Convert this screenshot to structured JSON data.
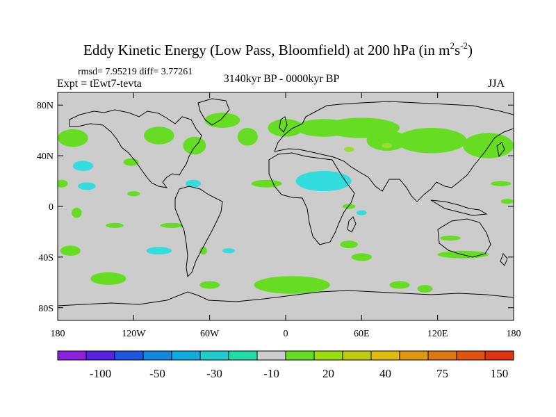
{
  "title_main": "Eddy Kinetic Energy (Low Pass, Bloomfield) at 200 hPa (in m",
  "title_sup1": "2",
  "title_mid": "s",
  "title_sup2": "-2",
  "title_end": ")",
  "stats": "rmsd= 7.95219 diff= 3.77261",
  "experiment": "Expt = tEwt7-tevta",
  "period": "3140kyr BP - 0000kyr BP",
  "season": "JJA",
  "map": {
    "projection": "cylindrical-equidistant",
    "lon_range": [
      -180,
      180
    ],
    "lat_range": [
      -90,
      90
    ],
    "background_color": "#cccccc",
    "coastline_color": "#000000",
    "lat_ticks": [
      {
        "value": 80,
        "label": "80N"
      },
      {
        "value": 40,
        "label": "40N"
      },
      {
        "value": 0,
        "label": "0"
      },
      {
        "value": -40,
        "label": "40S"
      },
      {
        "value": -80,
        "label": "80S"
      }
    ],
    "lon_ticks": [
      {
        "value": -180,
        "label": "180"
      },
      {
        "value": -120,
        "label": "120W"
      },
      {
        "value": -60,
        "label": "60W"
      },
      {
        "value": 0,
        "label": "0"
      },
      {
        "value": 60,
        "label": "60E"
      },
      {
        "value": 120,
        "label": "120E"
      },
      {
        "value": 180,
        "label": "180"
      }
    ],
    "positive_color": "#66dd22",
    "positive_light_color": "#99dd33",
    "negative_color": "#33dddd",
    "positive_regions": [
      {
        "lon": -168,
        "lat": 54,
        "rlon": 12,
        "rlat": 7
      },
      {
        "lon": -122,
        "lat": 35,
        "rlon": 6,
        "rlat": 3
      },
      {
        "lon": -100,
        "lat": 56,
        "rlon": 12,
        "rlat": 7
      },
      {
        "lon": -72,
        "lat": 48,
        "rlon": 9,
        "rlat": 7
      },
      {
        "lon": -50,
        "lat": 68,
        "rlon": 14,
        "rlat": 6
      },
      {
        "lon": -30,
        "lat": 55,
        "rlon": 8,
        "rlat": 7
      },
      {
        "lon": 0,
        "lat": 62,
        "rlon": 14,
        "rlat": 7
      },
      {
        "lon": 30,
        "lat": 62,
        "rlon": 22,
        "rlat": 7
      },
      {
        "lon": 60,
        "lat": 62,
        "rlon": 30,
        "rlat": 8
      },
      {
        "lon": 80,
        "lat": 52,
        "rlon": 16,
        "rlat": 8
      },
      {
        "lon": 115,
        "lat": 52,
        "rlon": 28,
        "rlat": 10
      },
      {
        "lon": 160,
        "lat": 48,
        "rlon": 20,
        "rlat": 10
      },
      {
        "lon": -177,
        "lat": 18,
        "rlon": 5,
        "rlat": 3
      },
      {
        "lon": -120,
        "lat": 10,
        "rlon": 5,
        "rlat": 2
      },
      {
        "lon": -165,
        "lat": -5,
        "rlon": 4,
        "rlat": 4
      },
      {
        "lon": -135,
        "lat": -15,
        "rlon": 7,
        "rlat": 2
      },
      {
        "lon": -90,
        "lat": -15,
        "rlon": 9,
        "rlat": 2
      },
      {
        "lon": -15,
        "lat": 18,
        "rlon": 12,
        "rlat": 3
      },
      {
        "lon": -65,
        "lat": -35,
        "rlon": 3,
        "rlat": 3
      },
      {
        "lon": 50,
        "lat": -30,
        "rlon": 7,
        "rlat": 3
      },
      {
        "lon": 50,
        "lat": 0,
        "rlon": 5,
        "rlat": 2
      },
      {
        "lon": 130,
        "lat": -25,
        "rlon": 8,
        "rlat": 2
      },
      {
        "lon": 140,
        "lat": -38,
        "rlon": 20,
        "rlat": 3
      },
      {
        "lon": 170,
        "lat": 18,
        "rlon": 8,
        "rlat": 2
      },
      {
        "lon": 175,
        "lat": 4,
        "rlon": 5,
        "rlat": 2
      },
      {
        "lon": -170,
        "lat": -35,
        "rlon": 8,
        "rlat": 4
      },
      {
        "lon": -140,
        "lat": -57,
        "rlon": 14,
        "rlat": 5
      },
      {
        "lon": 5,
        "lat": -62,
        "rlon": 30,
        "rlat": 7
      },
      {
        "lon": 60,
        "lat": -40,
        "rlon": 8,
        "rlat": 3
      },
      {
        "lon": 90,
        "lat": -62,
        "rlon": 8,
        "rlat": 3
      },
      {
        "lon": 110,
        "lat": -65,
        "rlon": 6,
        "rlat": 3
      },
      {
        "lon": -60,
        "lat": -62,
        "rlon": 8,
        "rlat": 3
      }
    ],
    "positive_light_regions": [
      {
        "lon": 80,
        "lat": 48,
        "rlon": 4,
        "rlat": 2
      },
      {
        "lon": 50,
        "lat": 45,
        "rlon": 4,
        "rlat": 2
      }
    ],
    "negative_regions": [
      {
        "lon": -160,
        "lat": 32,
        "rlon": 8,
        "rlat": 4
      },
      {
        "lon": -157,
        "lat": 16,
        "rlon": 7,
        "rlat": 3
      },
      {
        "lon": -73,
        "lat": 18,
        "rlon": 6,
        "rlat": 3
      },
      {
        "lon": 30,
        "lat": 20,
        "rlon": 22,
        "rlat": 8
      },
      {
        "lon": 60,
        "lat": -5,
        "rlon": 4,
        "rlat": 2
      },
      {
        "lon": -100,
        "lat": -35,
        "rlon": 10,
        "rlat": 3
      },
      {
        "lon": -45,
        "lat": -35,
        "rlon": 5,
        "rlat": 2
      }
    ]
  },
  "colorbar": {
    "colors": [
      "#8822dd",
      "#5522dd",
      "#2255dd",
      "#1188dd",
      "#11aadd",
      "#22cccc",
      "#22ddaa",
      "#cccccc",
      "#66dd22",
      "#99dd11",
      "#bbcc11",
      "#ddbb11",
      "#dd9911",
      "#dd7711",
      "#dd5511",
      "#dd3311"
    ],
    "labels": [
      "-100",
      "-50",
      "-30",
      "-10",
      "20",
      "40",
      "75",
      "150"
    ],
    "label_boundaries": [
      2,
      4,
      6,
      8,
      10,
      12,
      14,
      16
    ]
  }
}
